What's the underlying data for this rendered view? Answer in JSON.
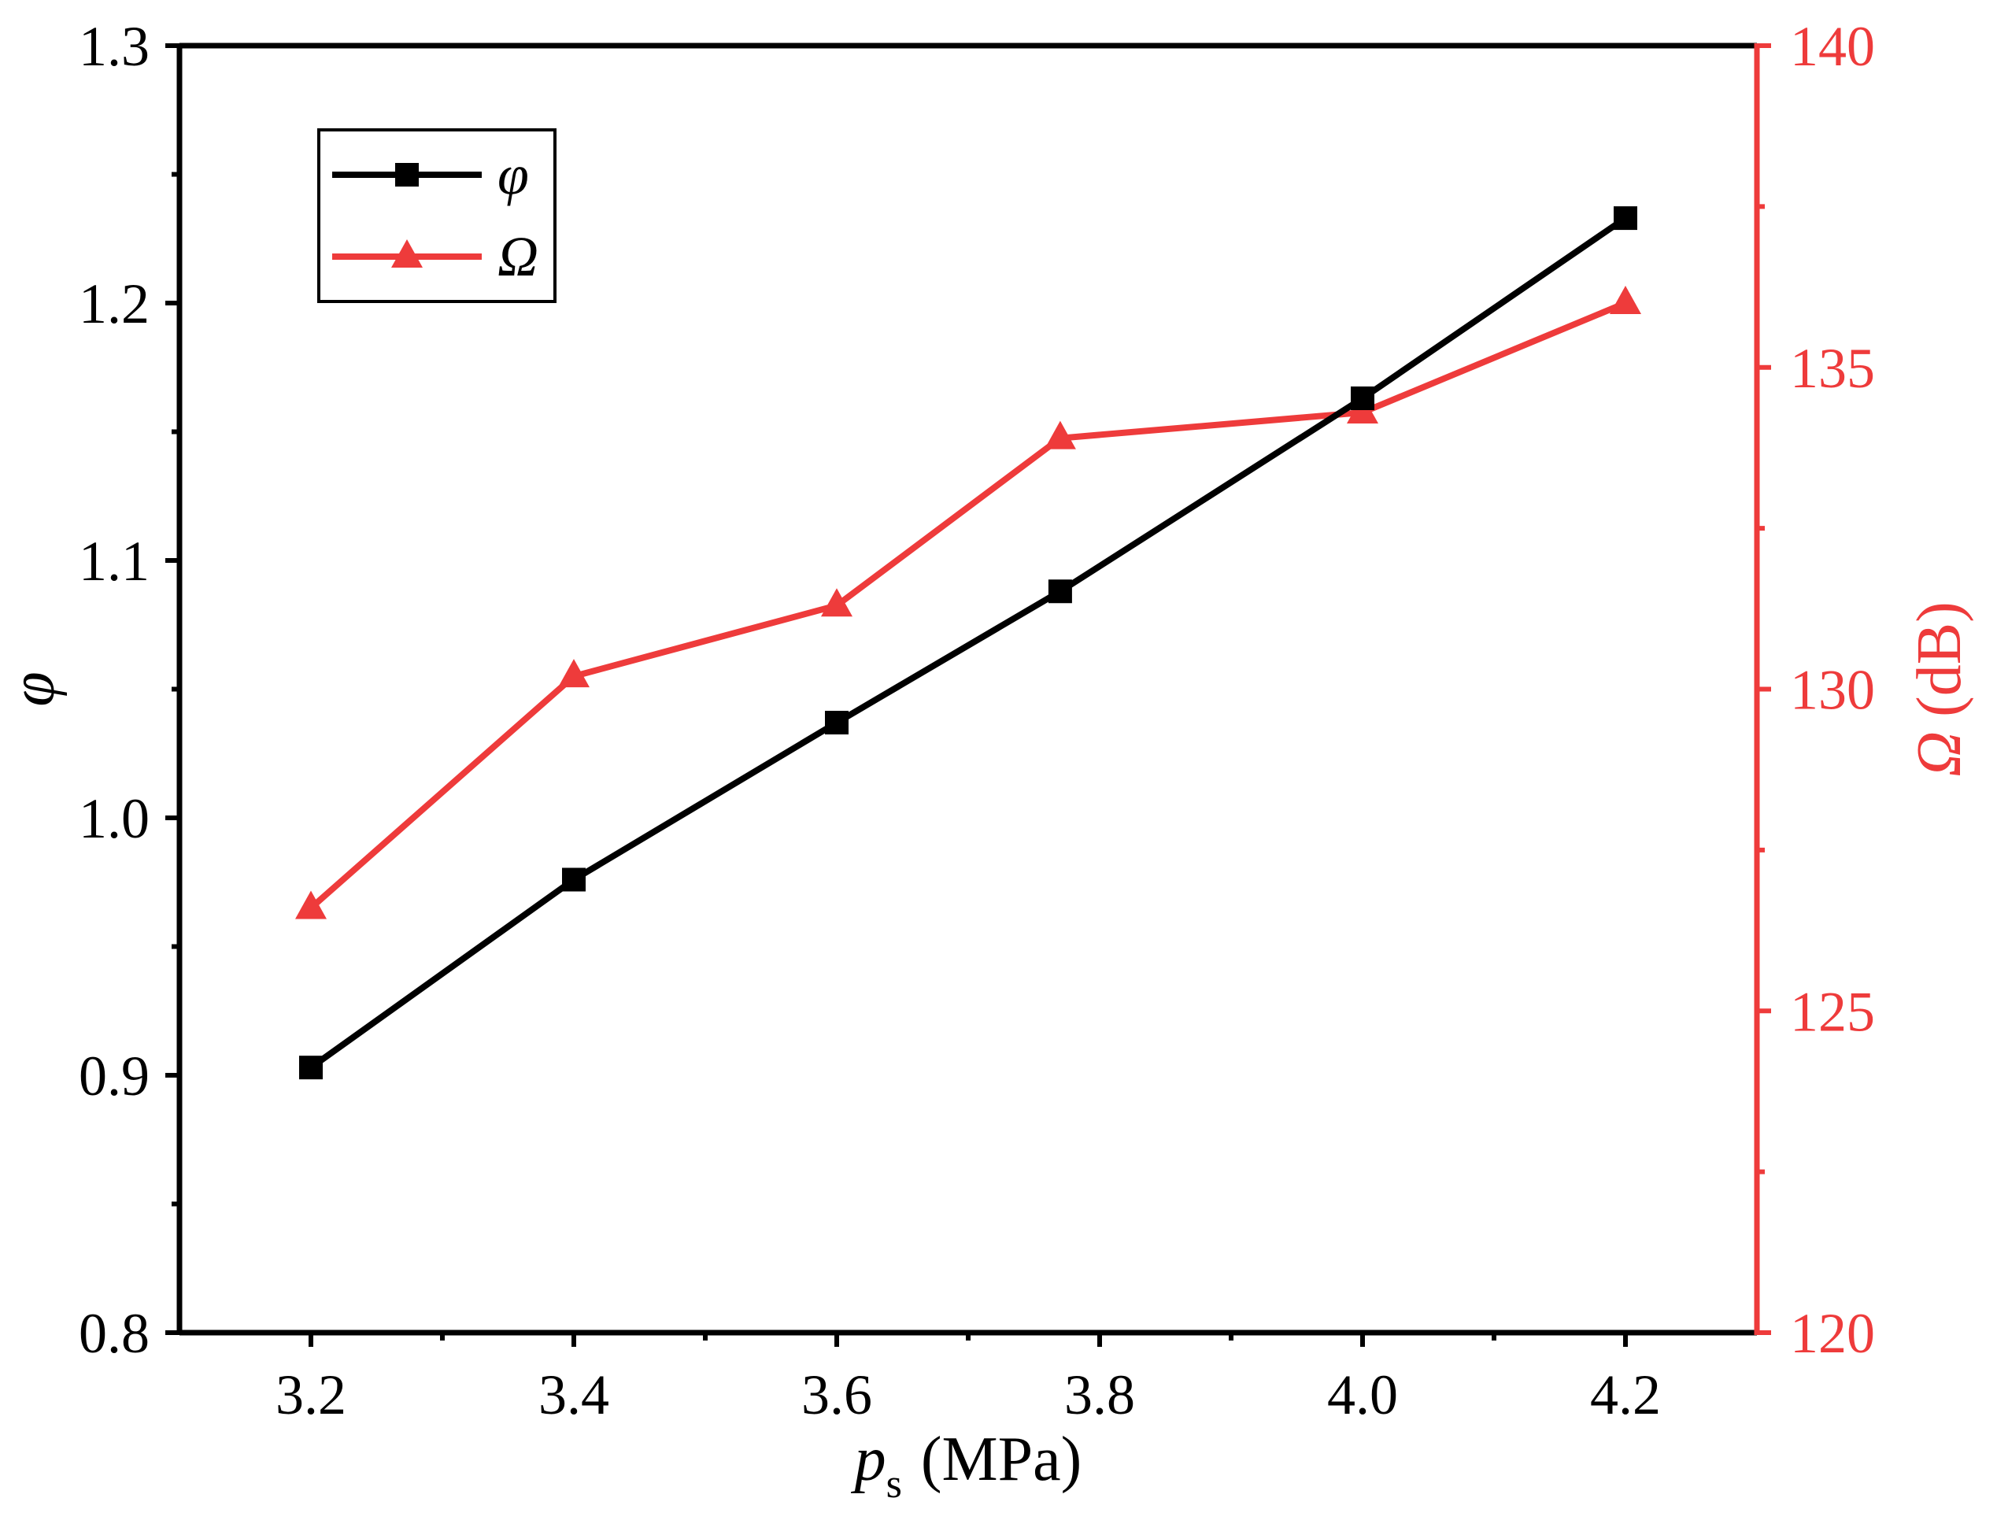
{
  "chart_data": {
    "type": "line",
    "title": "",
    "xlabel": {
      "symbol": "p",
      "subscript": "s",
      "unit": "(MPa)"
    },
    "ylabel_left": {
      "symbol": "φ"
    },
    "ylabel_right": {
      "symbol": "Ω",
      "unit": "(dB)"
    },
    "xlim": [
      3.1,
      4.3
    ],
    "ylim_left": [
      0.8,
      1.3
    ],
    "ylim_right": [
      120,
      140
    ],
    "x_ticks": [
      "3.2",
      "3.4",
      "3.6",
      "3.8",
      "4.0",
      "4.2"
    ],
    "y_left_ticks": [
      "0.8",
      "0.9",
      "1.0",
      "1.1",
      "1.2",
      "1.3"
    ],
    "y_right_ticks": [
      "120",
      "125",
      "130",
      "135",
      "140"
    ],
    "grid": false,
    "legend_position": "top-left",
    "series": [
      {
        "name": "φ",
        "axis": "left",
        "color": "#000000",
        "marker": "square",
        "x": [
          3.2,
          3.4,
          3.6,
          3.77,
          4.0,
          4.2
        ],
        "values": [
          0.903,
          0.976,
          1.037,
          1.088,
          1.163,
          1.233
        ]
      },
      {
        "name": "Ω",
        "axis": "right",
        "color": "#ee3b3b",
        "marker": "triangle",
        "x": [
          3.2,
          3.4,
          3.6,
          3.77,
          4.0,
          4.2
        ],
        "values": [
          126.6,
          130.2,
          131.3,
          133.9,
          134.3,
          136.0
        ]
      }
    ]
  }
}
